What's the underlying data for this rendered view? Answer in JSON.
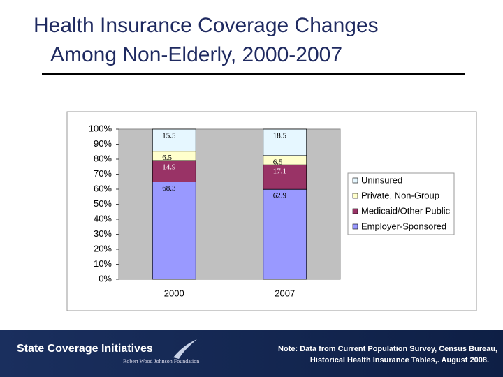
{
  "slide": {
    "title": [
      "Health Insurance Coverage Changes",
      "Among Non-Elderly, 2000-2007"
    ]
  },
  "footer": {
    "brand": "State Coverage Initiatives",
    "foundation": "Robert Wood Johnson Foundation",
    "note": [
      "Note:  Data from Current Population Survey, Census Bureau,",
      "Historical Health Insurance Tables,. August 2008."
    ]
  },
  "chart_data": {
    "type": "bar",
    "stacking": "percent",
    "categories": [
      "2000",
      "2007"
    ],
    "series": [
      {
        "name": "Employer-Sponsored",
        "color": "#9999ff",
        "values": [
          68.3,
          62.9
        ]
      },
      {
        "name": "Medicaid/Other Public",
        "color": "#993366",
        "values": [
          14.9,
          17.1
        ]
      },
      {
        "name": "Private, Non-Group",
        "color": "#ffffcc",
        "values": [
          6.5,
          6.5
        ]
      },
      {
        "name": "Uninsured",
        "color": "#e6f7ff",
        "values": [
          15.5,
          18.5
        ]
      }
    ],
    "ylim": [
      0,
      100
    ],
    "yticks": [
      {
        "value": 0,
        "label": "0%"
      },
      {
        "value": 10,
        "label": "10%"
      },
      {
        "value": 20,
        "label": "20%"
      },
      {
        "value": 30,
        "label": "30%"
      },
      {
        "value": 40,
        "label": "40%"
      },
      {
        "value": 50,
        "label": "50%"
      },
      {
        "value": 60,
        "label": "60%"
      },
      {
        "value": 70,
        "label": "70%"
      },
      {
        "value": 80,
        "label": "80%"
      },
      {
        "value": 90,
        "label": "90%"
      },
      {
        "value": 100,
        "label": "100%"
      }
    ],
    "legend": "right"
  }
}
